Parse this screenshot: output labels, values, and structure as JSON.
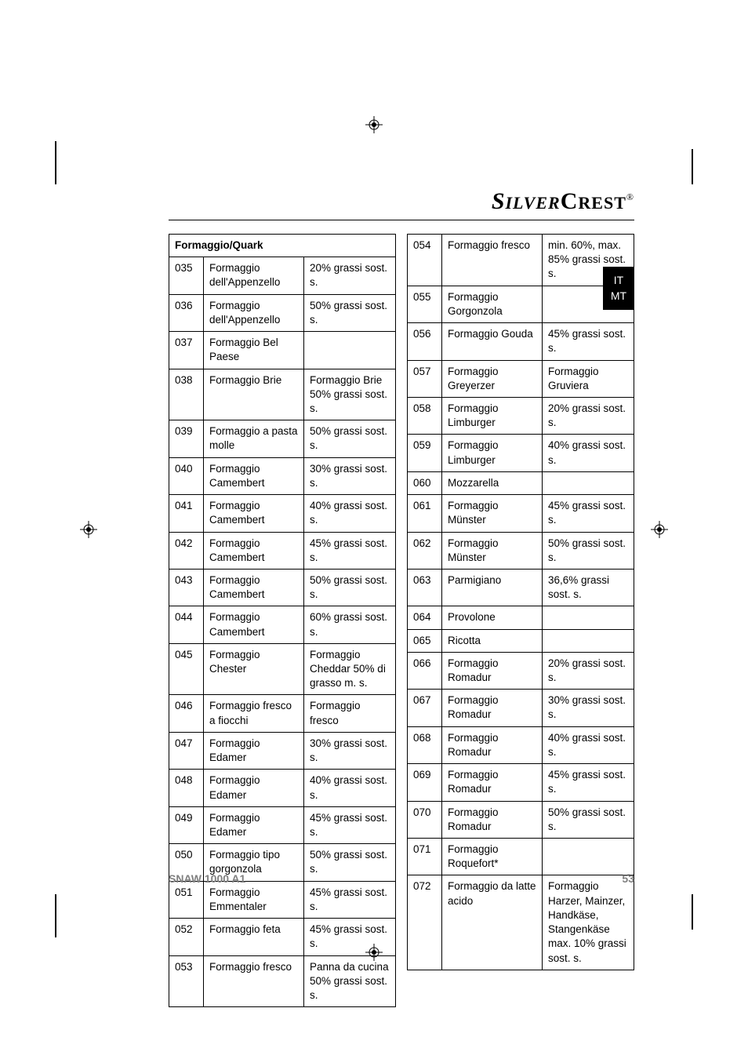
{
  "brand": {
    "part1": "S",
    "part1b": "ILVER",
    "part2": "C",
    "part2b": "REST",
    "reg": "®"
  },
  "sideTab": {
    "line1": "IT",
    "line2": "MT"
  },
  "footer": {
    "model": "SNAW 1000 A1",
    "page": "53"
  },
  "tableHeader": "Formaggio/Quark",
  "leftRows": [
    {
      "code": "035",
      "name": "Formaggio dell'Appenzello",
      "note": "20% grassi sost. s."
    },
    {
      "code": "036",
      "name": "Formaggio dell'Appenzello",
      "note": "50% grassi sost. s."
    },
    {
      "code": "037",
      "name": "Formaggio Bel Paese",
      "note": ""
    },
    {
      "code": "038",
      "name": "Formaggio Brie",
      "note": "Formaggio Brie 50% grassi sost. s."
    },
    {
      "code": "039",
      "name": "Formaggio a pasta molle",
      "note": "50% grassi sost. s."
    },
    {
      "code": "040",
      "name": "Formaggio Camembert",
      "note": "30% grassi sost. s."
    },
    {
      "code": "041",
      "name": "Formaggio Camembert",
      "note": "40% grassi sost. s."
    },
    {
      "code": "042",
      "name": "Formaggio Camembert",
      "note": "45% grassi sost. s."
    },
    {
      "code": "043",
      "name": "Formaggio Camembert",
      "note": "50% grassi sost. s."
    },
    {
      "code": "044",
      "name": "Formaggio Camembert",
      "note": "60% grassi sost. s."
    },
    {
      "code": "045",
      "name": "Formaggio Chester",
      "note": "Formaggio Cheddar 50% di grasso m. s."
    },
    {
      "code": "046",
      "name": "Formaggio fresco a fiocchi",
      "note": "Formaggio fresco"
    },
    {
      "code": "047",
      "name": "Formaggio Edamer",
      "note": "30% grassi sost. s."
    },
    {
      "code": "048",
      "name": "Formaggio Edamer",
      "note": "40% grassi sost. s."
    },
    {
      "code": "049",
      "name": "Formaggio Edamer",
      "note": "45% grassi sost. s."
    },
    {
      "code": "050",
      "name": "Formaggio tipo gorgonzola",
      "note": "50% grassi sost. s."
    },
    {
      "code": "051",
      "name": "Formaggio Emmentaler",
      "note": "45% grassi sost. s."
    },
    {
      "code": "052",
      "name": "Formaggio feta",
      "note": "45% grassi sost. s."
    },
    {
      "code": "053",
      "name": "Formaggio fresco",
      "note": "Panna da cucina 50% grassi sost. s."
    }
  ],
  "rightRows": [
    {
      "code": "054",
      "name": "Formaggio fresco",
      "note": "min. 60%, max. 85% grassi sost. s."
    },
    {
      "code": "055",
      "name": "Formaggio Gorgonzola",
      "note": ""
    },
    {
      "code": "056",
      "name": "Formaggio Gouda",
      "note": "45% grassi sost. s."
    },
    {
      "code": "057",
      "name": "Formaggio Greyerzer",
      "note": "Formaggio Gruviera"
    },
    {
      "code": "058",
      "name": "Formaggio Limburger",
      "note": "20% grassi sost. s."
    },
    {
      "code": "059",
      "name": "Formaggio Limburger",
      "note": "40% grassi sost. s."
    },
    {
      "code": "060",
      "name": "Mozzarella",
      "note": ""
    },
    {
      "code": "061",
      "name": "Formaggio Münster",
      "note": "45% grassi sost. s."
    },
    {
      "code": "062",
      "name": "Formaggio Münster",
      "note": "50% grassi sost. s."
    },
    {
      "code": "063",
      "name": "Parmigiano",
      "note": "36,6% grassi sost. s."
    },
    {
      "code": "064",
      "name": "Provolone",
      "note": ""
    },
    {
      "code": "065",
      "name": "Ricotta",
      "note": ""
    },
    {
      "code": "066",
      "name": "Formaggio Romadur",
      "note": "20% grassi sost. s."
    },
    {
      "code": "067",
      "name": "Formaggio Romadur",
      "note": "30% grassi sost. s."
    },
    {
      "code": "068",
      "name": "Formaggio Romadur",
      "note": "40% grassi sost. s."
    },
    {
      "code": "069",
      "name": "Formaggio Romadur",
      "note": "45% grassi sost. s."
    },
    {
      "code": "070",
      "name": "Formaggio Romadur",
      "note": "50% grassi sost. s."
    },
    {
      "code": "071",
      "name": "Formaggio Roquefort*",
      "note": ""
    },
    {
      "code": "072",
      "name": "Formaggio da latte acido",
      "note": "Formaggio Harzer, Mainzer, Handkäse, Stangenkäse max. 10% grassi sost. s."
    }
  ]
}
